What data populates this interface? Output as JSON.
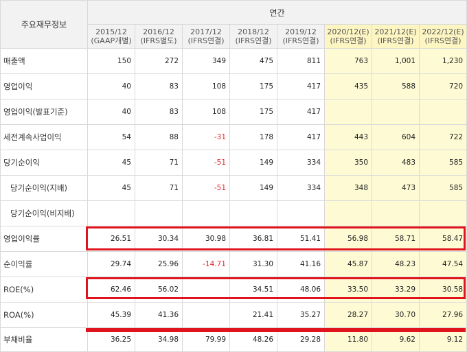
{
  "header": {
    "row_title": "주요재무정보",
    "group_title": "연간",
    "years": [
      {
        "period": "2015/12",
        "basis": "(GAAP개별)",
        "estimate": false
      },
      {
        "period": "2016/12",
        "basis": "(IFRS별도)",
        "estimate": false
      },
      {
        "period": "2017/12",
        "basis": "(IFRS연결)",
        "estimate": false
      },
      {
        "period": "2018/12",
        "basis": "(IFRS연결)",
        "estimate": false
      },
      {
        "period": "2019/12",
        "basis": "(IFRS연결)",
        "estimate": false
      },
      {
        "period": "2020/12(E)",
        "basis": "(IFRS연결)",
        "estimate": true
      },
      {
        "period": "2021/12(E)",
        "basis": "(IFRS연결)",
        "estimate": true
      },
      {
        "period": "2022/12(E)",
        "basis": "(IFRS연결)",
        "estimate": true
      }
    ]
  },
  "rows": [
    {
      "label": "매출액",
      "values": [
        "150",
        "272",
        "349",
        "475",
        "811",
        "763",
        "1,001",
        "1,230"
      ],
      "highlighted": false,
      "indent": false
    },
    {
      "label": "영업이익",
      "values": [
        "40",
        "83",
        "108",
        "175",
        "417",
        "435",
        "588",
        "720"
      ],
      "highlighted": false,
      "indent": false
    },
    {
      "label": "영업이익(발표기준)",
      "values": [
        "40",
        "83",
        "108",
        "175",
        "417",
        "",
        "",
        ""
      ],
      "highlighted": false,
      "indent": false
    },
    {
      "label": "세전계속사업이익",
      "values": [
        "54",
        "88",
        "-31",
        "178",
        "417",
        "443",
        "604",
        "722"
      ],
      "highlighted": false,
      "indent": false
    },
    {
      "label": "당기순이익",
      "values": [
        "45",
        "71",
        "-51",
        "149",
        "334",
        "350",
        "483",
        "585"
      ],
      "highlighted": false,
      "indent": false
    },
    {
      "label": "당기순이익(지배)",
      "values": [
        "45",
        "71",
        "-51",
        "149",
        "334",
        "348",
        "473",
        "585"
      ],
      "highlighted": false,
      "indent": true
    },
    {
      "label": "당기순이익(비지배)",
      "values": [
        "",
        "",
        "",
        "",
        "",
        "",
        "",
        ""
      ],
      "highlighted": false,
      "indent": true
    },
    {
      "label": "영업이익률",
      "values": [
        "26.51",
        "30.34",
        "30.98",
        "36.81",
        "51.41",
        "56.98",
        "58.71",
        "58.47"
      ],
      "highlighted": true,
      "indent": false
    },
    {
      "label": "순이익률",
      "values": [
        "29.74",
        "25.96",
        "-14.71",
        "31.30",
        "41.16",
        "45.87",
        "48.23",
        "47.54"
      ],
      "highlighted": false,
      "indent": false
    },
    {
      "label": "ROE(%)",
      "values": [
        "62.46",
        "56.02",
        "",
        "34.51",
        "48.06",
        "33.50",
        "33.29",
        "30.58"
      ],
      "highlighted": true,
      "indent": false
    },
    {
      "label": "ROA(%)",
      "values": [
        "45.39",
        "41.36",
        "",
        "21.41",
        "35.27",
        "28.27",
        "30.70",
        "27.96"
      ],
      "highlighted": false,
      "indent": false
    },
    {
      "label": "부채비율",
      "values": [
        "36.25",
        "34.98",
        "79.99",
        "48.26",
        "29.28",
        "11.80",
        "9.62",
        "9.12"
      ],
      "highlighted": true,
      "indent": false
    }
  ],
  "colors": {
    "highlight_border": "#e0141e",
    "estimate_bg": "#fefbd4",
    "negative_text": "#e0282e",
    "header_bg": "#f2f2f2"
  }
}
